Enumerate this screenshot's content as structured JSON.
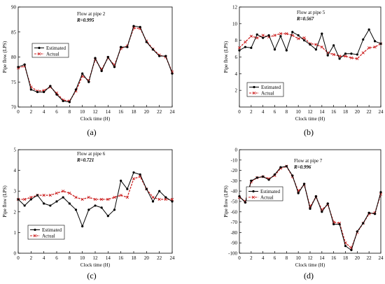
{
  "chart_data": [
    {
      "type": "line",
      "panel_label": "(a)",
      "title": "Flow at pipe 2",
      "r_value": "R=0.995",
      "xlabel": "Clock time (H)",
      "ylabel": "Pipe flow (LPS)",
      "xlim": [
        0,
        24
      ],
      "ylim": [
        70,
        90
      ],
      "xticks": [
        0,
        2,
        4,
        6,
        8,
        10,
        12,
        14,
        16,
        18,
        20,
        22,
        24
      ],
      "yticks": [
        70,
        75,
        80,
        85,
        90
      ],
      "legend": {
        "position": "left",
        "entries": [
          "Estimated",
          "Actual"
        ]
      },
      "series": [
        {
          "name": "Estimated",
          "color": "#000000",
          "marker": "circle",
          "x": [
            0,
            1,
            2,
            3,
            4,
            5,
            6,
            7,
            8,
            9,
            10,
            11,
            12,
            13,
            14,
            15,
            16,
            17,
            18,
            19,
            20,
            21,
            22,
            23,
            24
          ],
          "y": [
            78.0,
            78.5,
            73.5,
            73.0,
            73.0,
            74.2,
            72.5,
            71.2,
            71.0,
            73.5,
            76.7,
            75.0,
            79.8,
            77.2,
            80.0,
            78.0,
            82.0,
            82.0,
            86.2,
            86.0,
            83.0,
            81.5,
            80.2,
            80.2,
            76.7
          ]
        },
        {
          "name": "Actual",
          "color": "#cc2222",
          "marker": "x",
          "x": [
            0,
            1,
            2,
            3,
            4,
            5,
            6,
            7,
            8,
            9,
            10,
            11,
            12,
            13,
            14,
            15,
            16,
            17,
            18,
            19,
            20,
            21,
            22,
            23,
            24
          ],
          "y": [
            77.8,
            78.2,
            74.0,
            73.2,
            73.3,
            74.0,
            72.8,
            71.4,
            71.2,
            73.2,
            76.2,
            75.3,
            79.5,
            77.5,
            79.8,
            78.4,
            81.7,
            82.2,
            85.8,
            85.7,
            83.2,
            81.6,
            80.4,
            80.0,
            77.0
          ]
        }
      ]
    },
    {
      "type": "line",
      "panel_label": "(b)",
      "title": "Flow at pipe 5",
      "r_value": "R=0.567",
      "xlabel": "Clock time (H)",
      "ylabel": "Pipe flow (LPS)",
      "xlim": [
        0,
        24
      ],
      "ylim": [
        0,
        12
      ],
      "xticks": [
        0,
        2,
        4,
        6,
        8,
        10,
        12,
        14,
        16,
        18,
        20,
        22,
        24
      ],
      "yticks": [
        2,
        4,
        6,
        8,
        10,
        12
      ],
      "legend": {
        "position": "bottom-left",
        "entries": [
          "Estimated",
          "Actual"
        ]
      },
      "series": [
        {
          "name": "Estimated",
          "color": "#000000",
          "marker": "circle",
          "x": [
            0,
            1,
            2,
            3,
            4,
            5,
            6,
            7,
            8,
            9,
            10,
            11,
            12,
            13,
            14,
            15,
            16,
            17,
            18,
            19,
            20,
            21,
            22,
            23,
            24
          ],
          "y": [
            6.8,
            7.2,
            7.1,
            8.7,
            8.3,
            8.6,
            6.9,
            8.5,
            6.8,
            9.0,
            8.6,
            8.0,
            7.5,
            6.9,
            8.8,
            6.2,
            7.4,
            5.8,
            6.4,
            6.4,
            6.3,
            8.1,
            9.3,
            7.9,
            7.6
          ]
        },
        {
          "name": "Actual",
          "color": "#cc2222",
          "marker": "x",
          "x": [
            0,
            1,
            2,
            3,
            4,
            5,
            6,
            7,
            8,
            9,
            10,
            11,
            12,
            13,
            14,
            15,
            16,
            17,
            18,
            19,
            20,
            21,
            22,
            23,
            24
          ],
          "y": [
            7.1,
            7.8,
            8.5,
            8.3,
            8.6,
            8.4,
            8.6,
            8.8,
            8.8,
            8.6,
            8.2,
            8.3,
            7.6,
            7.5,
            7.2,
            6.5,
            6.3,
            6.1,
            6.1,
            5.9,
            5.8,
            6.5,
            7.1,
            7.2,
            7.6
          ]
        }
      ]
    },
    {
      "type": "line",
      "panel_label": "(c)",
      "title": "Flow at pipe 6",
      "r_value": "R=0.721",
      "xlabel": "Clock time (H)",
      "ylabel": "Pipe flow (LPS)",
      "xlim": [
        0,
        24
      ],
      "ylim": [
        0,
        5
      ],
      "xticks": [
        0,
        2,
        4,
        6,
        8,
        10,
        12,
        14,
        16,
        18,
        20,
        22,
        24
      ],
      "yticks": [
        0,
        1,
        2,
        3,
        4,
        5
      ],
      "legend": {
        "position": "bottom-left",
        "entries": [
          "Estimated",
          "Actual"
        ]
      },
      "series": [
        {
          "name": "Estimated",
          "color": "#000000",
          "marker": "circle",
          "x": [
            0,
            1,
            2,
            3,
            4,
            5,
            6,
            7,
            8,
            9,
            10,
            11,
            12,
            13,
            14,
            15,
            16,
            17,
            18,
            19,
            20,
            21,
            22,
            23,
            24
          ],
          "y": [
            2.6,
            2.3,
            2.6,
            2.8,
            2.4,
            2.3,
            2.5,
            2.7,
            2.4,
            2.1,
            1.3,
            2.1,
            2.3,
            2.2,
            1.8,
            2.1,
            3.5,
            3.1,
            3.9,
            3.8,
            3.1,
            2.5,
            3.0,
            2.7,
            2.5
          ]
        },
        {
          "name": "Actual",
          "color": "#cc2222",
          "marker": "x",
          "x": [
            0,
            1,
            2,
            3,
            4,
            5,
            6,
            7,
            8,
            9,
            10,
            11,
            12,
            13,
            14,
            15,
            16,
            17,
            18,
            19,
            20,
            21,
            22,
            23,
            24
          ],
          "y": [
            2.6,
            2.6,
            2.7,
            2.8,
            2.8,
            2.8,
            2.9,
            3.0,
            2.9,
            2.7,
            2.6,
            2.7,
            2.6,
            2.6,
            2.6,
            2.7,
            2.8,
            2.7,
            3.6,
            3.7,
            3.1,
            2.7,
            2.6,
            2.6,
            2.6
          ]
        }
      ]
    },
    {
      "type": "line",
      "panel_label": "(d)",
      "title": "Flow at pipe 7",
      "r_value": "R=0.996",
      "xlabel": "Clock time (H)",
      "ylabel": "Pipe flow (LPS)",
      "xlim": [
        0,
        24
      ],
      "ylim": [
        -100,
        0
      ],
      "xticks": [
        0,
        2,
        4,
        6,
        8,
        10,
        12,
        14,
        16,
        18,
        20,
        22,
        24
      ],
      "yticks": [
        0,
        -10,
        -20,
        -30,
        -40,
        -50,
        -60,
        -70,
        -80,
        -90,
        -100
      ],
      "legend": {
        "position": "top-left",
        "entries": [
          "Estimated",
          "Actual"
        ]
      },
      "series": [
        {
          "name": "Estimated",
          "color": "#000000",
          "marker": "circle",
          "x": [
            0,
            1,
            2,
            3,
            4,
            5,
            6,
            7,
            8,
            9,
            10,
            11,
            12,
            13,
            14,
            15,
            16,
            17,
            18,
            19,
            20,
            21,
            22,
            23,
            24
          ],
          "y": [
            -45,
            -51,
            -30,
            -27,
            -26,
            -29,
            -24,
            -17,
            -16,
            -25,
            -42,
            -33,
            -57,
            -45,
            -60,
            -52,
            -72,
            -72,
            -93,
            -97,
            -79,
            -71,
            -61,
            -62,
            -41
          ]
        },
        {
          "name": "Actual",
          "color": "#cc2222",
          "marker": "x",
          "x": [
            0,
            1,
            2,
            3,
            4,
            5,
            6,
            7,
            8,
            9,
            10,
            11,
            12,
            13,
            14,
            15,
            16,
            17,
            18,
            19,
            20,
            21,
            22,
            23,
            24
          ],
          "y": [
            -46,
            -50,
            -31,
            -27,
            -26,
            -28,
            -25,
            -18,
            -16,
            -26,
            -40,
            -34,
            -55,
            -46,
            -58,
            -53,
            -70,
            -71,
            -90,
            -95,
            -80,
            -71,
            -62,
            -61,
            -43
          ]
        }
      ]
    }
  ]
}
